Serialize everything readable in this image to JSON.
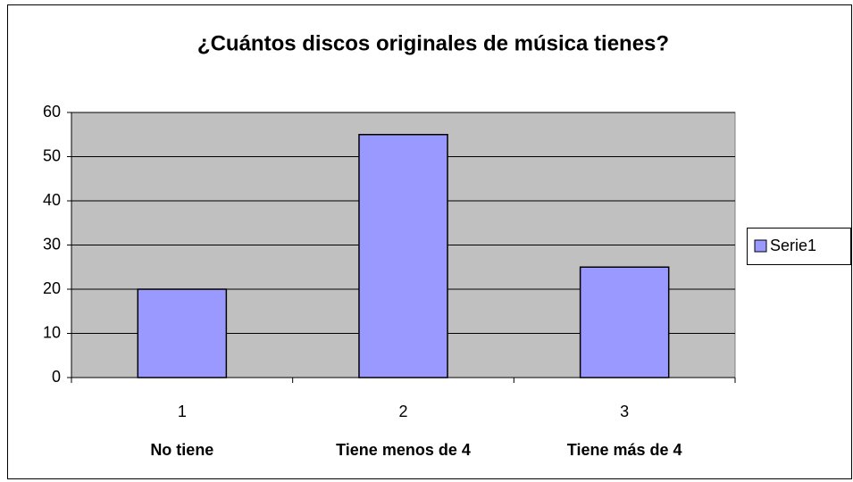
{
  "chart_data": {
    "type": "bar",
    "title": "¿Cuántos discos originales de música tienes?",
    "categories": [
      "1",
      "2",
      "3"
    ],
    "category_names": [
      "No tiene",
      "Tiene menos de 4",
      "Tiene más de 4"
    ],
    "series": [
      {
        "name": "Serie1",
        "color": "#9999ff",
        "values": [
          20,
          55,
          25
        ]
      }
    ],
    "ylim": [
      0,
      60
    ],
    "yticks": [
      0,
      10,
      20,
      30,
      40,
      50,
      60
    ],
    "grid": true,
    "legend": "right",
    "plot_background": "#c0c0c0"
  }
}
